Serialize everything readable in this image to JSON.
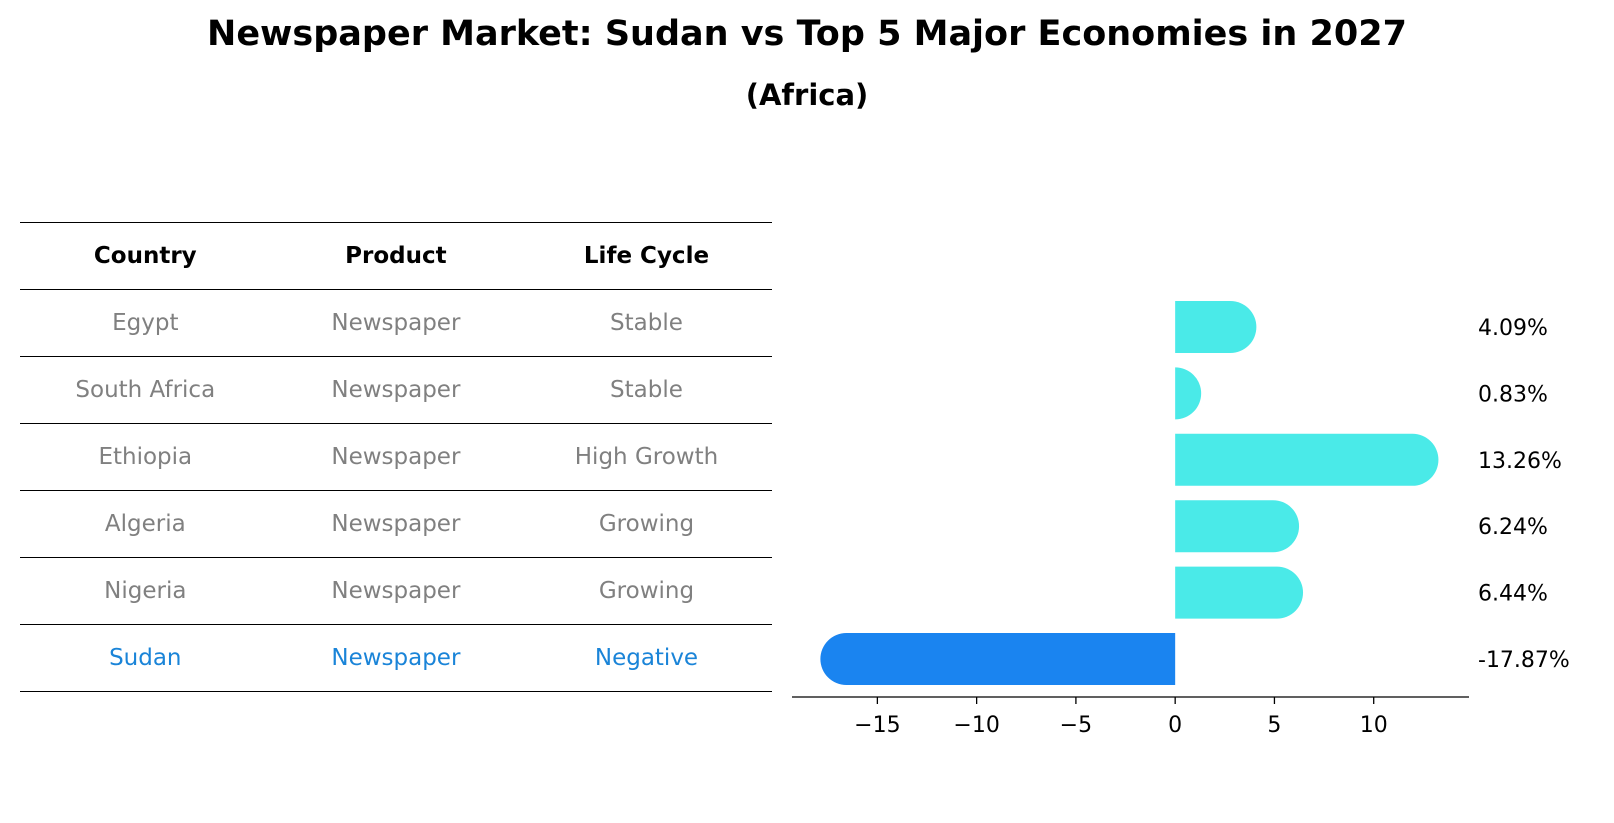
{
  "title": "Newspaper Market: Sudan vs Top 5 Major Economies in 2027",
  "subtitle": "(Africa)",
  "table": {
    "headers": [
      "Country",
      "Product",
      "Life Cycle"
    ],
    "rows": [
      [
        "Egypt",
        "Newspaper",
        "Stable"
      ],
      [
        "South Africa",
        "Newspaper",
        "Stable"
      ],
      [
        "Ethiopia",
        "Newspaper",
        "High Growth"
      ],
      [
        "Algeria",
        "Newspaper",
        "Growing"
      ],
      [
        "Nigeria",
        "Newspaper",
        "Growing"
      ],
      [
        "Sudan",
        "Newspaper",
        "Negative"
      ]
    ]
  },
  "colors": {
    "positive": "#4aeae8",
    "negative": "#1a84f0",
    "highlight_text": "#1a84d8",
    "muted_text": "#808080"
  },
  "chart_data": {
    "type": "bar",
    "orientation": "horizontal",
    "categories": [
      "Egypt",
      "South Africa",
      "Ethiopia",
      "Algeria",
      "Nigeria",
      "Sudan"
    ],
    "values": [
      4.09,
      0.83,
      13.26,
      6.24,
      6.44,
      -17.87
    ],
    "labels": [
      "4.09%",
      "0.83%",
      "13.26%",
      "6.24%",
      "6.44%",
      "-17.87%"
    ],
    "xticks": [
      -15,
      -10,
      -5,
      0,
      5,
      10
    ],
    "xtick_labels": [
      "−15",
      "−10",
      "−5",
      "0",
      "5",
      "10"
    ],
    "xlim": [
      -19.3,
      14.8
    ],
    "grid": false
  }
}
